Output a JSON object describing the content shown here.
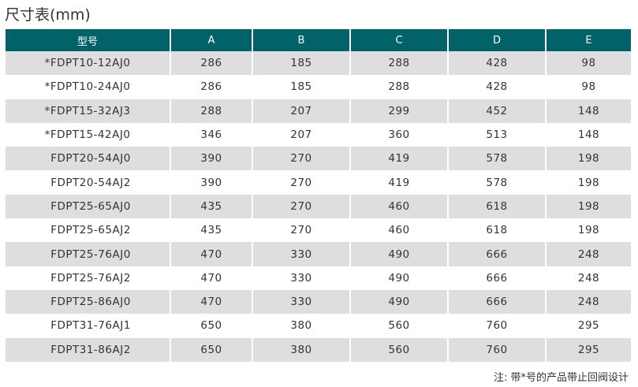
{
  "title": "尺寸表(mm)",
  "table": {
    "headers": [
      "型号",
      "A",
      "B",
      "C",
      "D",
      "E"
    ],
    "rows": [
      [
        "*FDPT10-12AJ0",
        "286",
        "185",
        "288",
        "428",
        "98"
      ],
      [
        "*FDPT10-24AJ0",
        "286",
        "185",
        "288",
        "428",
        "98"
      ],
      [
        "*FDPT15-32AJ3",
        "288",
        "207",
        "299",
        "452",
        "148"
      ],
      [
        "*FDPT15-42AJ0",
        "346",
        "207",
        "360",
        "513",
        "148"
      ],
      [
        "FDPT20-54AJ0",
        "390",
        "270",
        "419",
        "578",
        "198"
      ],
      [
        "FDPT20-54AJ2",
        "390",
        "270",
        "419",
        "578",
        "198"
      ],
      [
        "FDPT25-65AJ0",
        "435",
        "270",
        "460",
        "618",
        "198"
      ],
      [
        "FDPT25-65AJ2",
        "435",
        "270",
        "460",
        "618",
        "198"
      ],
      [
        "FDPT25-76AJ0",
        "470",
        "330",
        "490",
        "666",
        "248"
      ],
      [
        "FDPT25-76AJ2",
        "470",
        "330",
        "490",
        "666",
        "248"
      ],
      [
        "FDPT25-86AJ0",
        "470",
        "330",
        "490",
        "666",
        "248"
      ],
      [
        "FDPT31-76AJ1",
        "650",
        "380",
        "560",
        "760",
        "295"
      ],
      [
        "FDPT31-86AJ2",
        "650",
        "380",
        "560",
        "760",
        "295"
      ]
    ]
  },
  "note": "注: 带*号的产品带止回阀设计",
  "colors": {
    "header": "#02626a",
    "stripe": "#dedede"
  }
}
